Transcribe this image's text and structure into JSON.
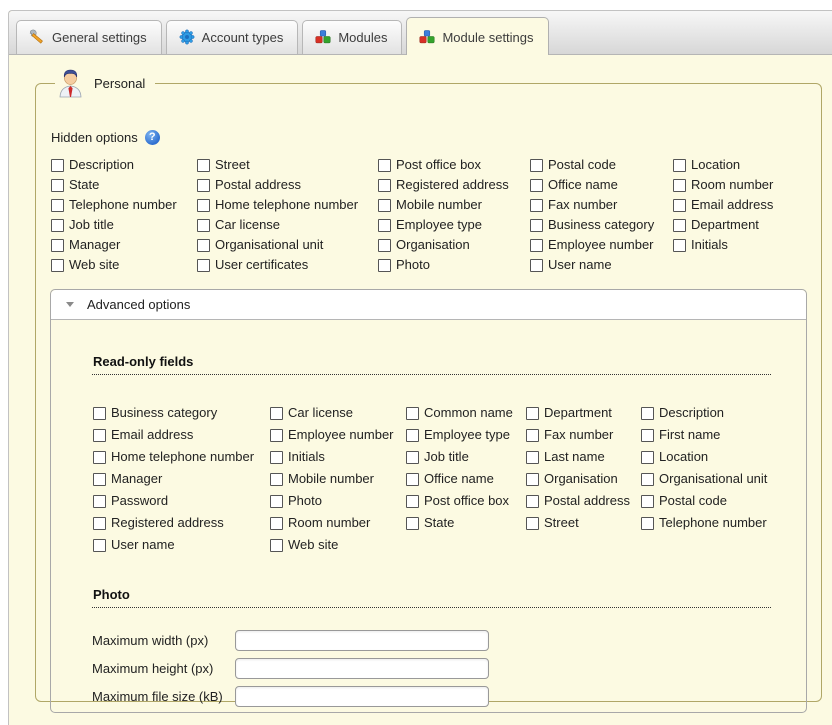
{
  "tabs": [
    {
      "label": "General settings",
      "icon": "wrench-icon",
      "active": false
    },
    {
      "label": "Account types",
      "icon": "gear-icon",
      "active": false
    },
    {
      "label": "Modules",
      "icon": "modules-icon",
      "active": false
    },
    {
      "label": "Module settings",
      "icon": "modules-icon",
      "active": true
    }
  ],
  "personal": {
    "legend": "Personal",
    "hidden_options": {
      "label": "Hidden options",
      "items": [
        "Description",
        "Street",
        "Post office box",
        "Postal code",
        "Location",
        "State",
        "Postal address",
        "Registered address",
        "Office name",
        "Room number",
        "Telephone number",
        "Home telephone number",
        "Mobile number",
        "Fax number",
        "Email address",
        "Job title",
        "Car license",
        "Employee type",
        "Business category",
        "Department",
        "Manager",
        "Organisational unit",
        "Organisation",
        "Employee number",
        "Initials",
        "Web site",
        "User certificates",
        "Photo",
        "User name"
      ]
    },
    "advanced": {
      "header": "Advanced options",
      "read_only": {
        "heading": "Read-only fields",
        "items": [
          "Business category",
          "Car license",
          "Common name",
          "Department",
          "Description",
          "Email address",
          "Employee number",
          "Employee type",
          "Fax number",
          "First name",
          "Home telephone number",
          "Initials",
          "Job title",
          "Last name",
          "Location",
          "Manager",
          "Mobile number",
          "Office name",
          "Organisation",
          "Organisational unit",
          "Password",
          "Photo",
          "Post office box",
          "Postal address",
          "Postal code",
          "Registered address",
          "Room number",
          "State",
          "Street",
          "Telephone number",
          "User name",
          "Web site"
        ]
      },
      "photo": {
        "heading": "Photo",
        "fields": [
          {
            "label": "Maximum width (px)",
            "value": ""
          },
          {
            "label": "Maximum height (px)",
            "value": ""
          },
          {
            "label": "Maximum file size (kB)",
            "value": ""
          }
        ]
      }
    }
  },
  "colors": {
    "content_bg": "#fcfae2",
    "fieldset_border": "#b0a767",
    "panel_border": "#a8a8a8",
    "tab_text": "#3c3c3c",
    "help_icon_blue": "#2f6fd0",
    "tie_red": "#cc2a2a",
    "cube_red": "#d93025",
    "cube_green": "#34a42c",
    "cube_blue": "#3b7edb"
  }
}
